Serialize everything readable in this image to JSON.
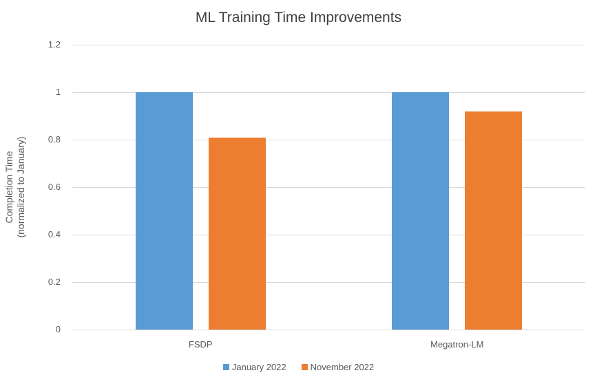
{
  "chart_data": {
    "type": "bar",
    "title": "ML Training Time Improvements",
    "xlabel": "",
    "ylabel": "Completion Time\n(normalized to January)",
    "ylabel_lines": [
      "Completion Time",
      "(normalized to January)"
    ],
    "categories": [
      "FSDP",
      "Megatron-LM"
    ],
    "series": [
      {
        "name": "January 2022",
        "color": "#5b9bd5",
        "values": [
          1.0,
          1.0
        ]
      },
      {
        "name": "November 2022",
        "color": "#ed7d31",
        "values": [
          0.81,
          0.92
        ]
      }
    ],
    "ylim": [
      0,
      1.2
    ],
    "yticks": [
      "0",
      "0.2",
      "0.4",
      "0.6",
      "0.8",
      "1",
      "1.2"
    ],
    "grid": true,
    "legend_position": "bottom"
  }
}
